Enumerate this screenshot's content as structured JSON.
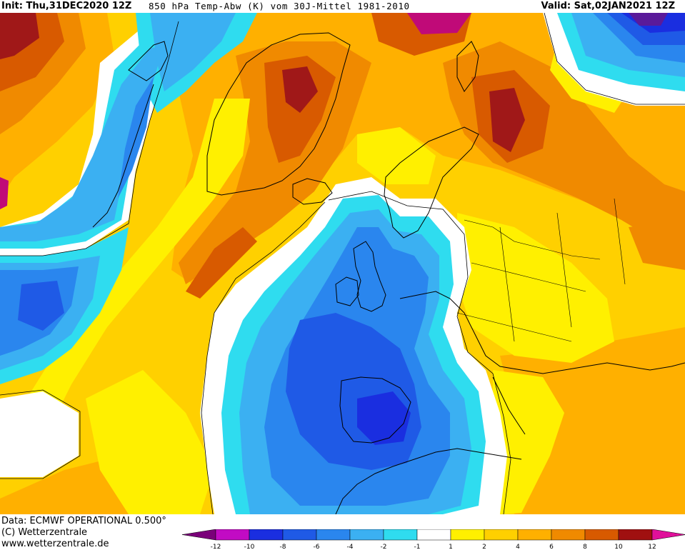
{
  "header": {
    "init": "Init: Thu,31DEC2020 12Z",
    "title": "850 hPa Temp-Abw (K) vom 30J-Mittel 1981-2010",
    "valid": "Valid: Sat,02JAN2021 12Z"
  },
  "footer": {
    "data_line": "Data: ECMWF OPERATIONAL 0.500°",
    "copyright": "(C) Wetterzentrale",
    "url": "www.wetterzentrale.de"
  },
  "legend": {
    "ticks": [
      "-12",
      "-10",
      "-8",
      "-6",
      "-4",
      "-2",
      "-1",
      "1",
      "2",
      "4",
      "6",
      "8",
      "10",
      "12"
    ],
    "colors": [
      "#7a0079",
      "#c20bc4",
      "#1a2ee0",
      "#1f5ae6",
      "#2a86ee",
      "#3bb0f2",
      "#2fdcef",
      "#ffffff",
      "#fff000",
      "#ffd000",
      "#ffb000",
      "#f08a00",
      "#d85a00",
      "#a01010",
      "#e0109a"
    ]
  },
  "map": {
    "colors": {
      "white": "#ffffff",
      "yellow": "#fff000",
      "gold": "#ffd000",
      "orange": "#ffb000",
      "dark_orange": "#f08a00",
      "rust": "#d85a00",
      "maroon": "#a01818",
      "magenta": "#c00a78",
      "cyan": "#2fdcef",
      "light_blue": "#3bb0f2",
      "blue": "#2a86ee",
      "deep_blue": "#1f5ae6",
      "navy": "#1a2ee0",
      "purple": "#5a1a9a"
    }
  }
}
